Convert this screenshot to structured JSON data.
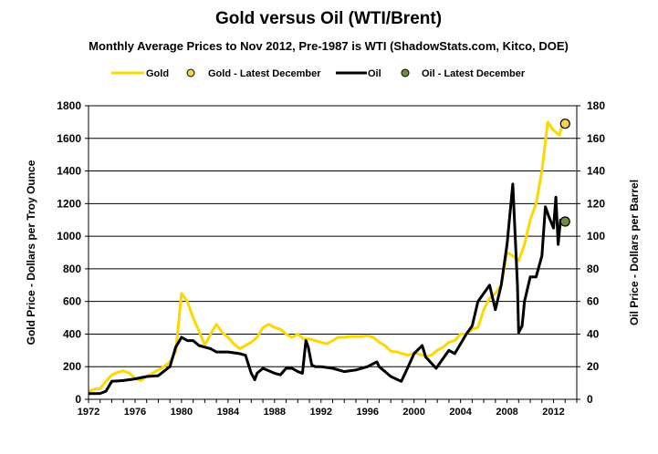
{
  "chart_data": {
    "type": "line",
    "title": "Gold versus Oil (WTI/Brent)",
    "subtitle": "Monthly Average Prices to Nov 2012, Pre-1987 is WTI (ShadowStats.com, Kitco, DOE)",
    "ylabel_left": "Gold Price - Dollars per Troy Ounce",
    "ylabel_right": "Oil Price - Dollars per Barrel",
    "xlim": [
      1972,
      2014
    ],
    "ylim_left": [
      0,
      1800
    ],
    "ylim_right": [
      0,
      180
    ],
    "x_ticks": [
      "1972",
      "1976",
      "1980",
      "1984",
      "1988",
      "1992",
      "1996",
      "2000",
      "2004",
      "2008",
      "2012"
    ],
    "y_ticks_left": [
      "0",
      "200",
      "400",
      "600",
      "800",
      "1000",
      "1200",
      "1400",
      "1600",
      "1800"
    ],
    "y_ticks_right": [
      "0",
      "20",
      "40",
      "60",
      "80",
      "100",
      "120",
      "140",
      "160",
      "180"
    ],
    "grid": true,
    "legend_position": "top",
    "colors": {
      "gold": "#FFD700",
      "oil": "#000000",
      "gold_marker": "#F2D24A",
      "oil_marker": "#6B8E3A"
    },
    "legend": [
      "Gold",
      "Gold - Latest December",
      "Oil",
      "Oil - Latest December"
    ],
    "series": [
      {
        "name": "Gold",
        "axis": "left",
        "x": [
          1972.0,
          1972.5,
          1973.0,
          1973.5,
          1974.0,
          1974.5,
          1975.0,
          1975.5,
          1976.0,
          1976.5,
          1977.0,
          1977.5,
          1978.0,
          1978.5,
          1979.0,
          1979.5,
          1980.0,
          1980.5,
          1981.0,
          1981.5,
          1982.0,
          1982.5,
          1983.0,
          1983.5,
          1984.0,
          1984.5,
          1985.0,
          1985.5,
          1986.0,
          1986.5,
          1987.0,
          1987.5,
          1988.0,
          1988.5,
          1989.0,
          1989.5,
          1990.0,
          1990.5,
          1991.0,
          1991.5,
          1992.0,
          1992.5,
          1993.0,
          1993.5,
          1994.0,
          1994.5,
          1995.0,
          1995.5,
          1996.0,
          1996.5,
          1997.0,
          1997.5,
          1998.0,
          1998.5,
          1999.0,
          1999.5,
          2000.0,
          2000.5,
          2001.0,
          2001.5,
          2002.0,
          2002.5,
          2003.0,
          2003.5,
          2004.0,
          2004.5,
          2005.0,
          2005.5,
          2006.0,
          2006.5,
          2007.0,
          2007.5,
          2008.0,
          2008.5,
          2009.0,
          2009.5,
          2010.0,
          2010.5,
          2011.0,
          2011.5,
          2012.0,
          2012.5,
          2012.9
        ],
        "values": [
          48,
          62,
          65,
          110,
          150,
          165,
          175,
          160,
          130,
          115,
          140,
          160,
          180,
          200,
          230,
          290,
          650,
          600,
          500,
          420,
          330,
          400,
          460,
          410,
          380,
          340,
          310,
          330,
          350,
          380,
          440,
          460,
          440,
          430,
          400,
          380,
          400,
          370,
          370,
          360,
          350,
          340,
          360,
          380,
          380,
          385,
          385,
          385,
          390,
          380,
          350,
          330,
          295,
          290,
          280,
          270,
          285,
          275,
          265,
          270,
          300,
          320,
          350,
          360,
          400,
          400,
          430,
          440,
          550,
          620,
          650,
          700,
          900,
          880,
          850,
          950,
          1100,
          1200,
          1400,
          1700,
          1650,
          1620,
          1720
        ]
      },
      {
        "name": "Oil",
        "axis": "right",
        "x": [
          1972.0,
          1973.0,
          1973.5,
          1974.0,
          1975.0,
          1976.0,
          1977.0,
          1978.0,
          1979.0,
          1979.5,
          1980.0,
          1980.5,
          1981.0,
          1981.5,
          1982.0,
          1982.5,
          1983.0,
          1984.0,
          1985.0,
          1985.5,
          1986.0,
          1986.3,
          1986.5,
          1987.0,
          1988.0,
          1988.5,
          1989.0,
          1989.5,
          1990.0,
          1990.4,
          1990.7,
          1990.9,
          1991.2,
          1991.5,
          1992.0,
          1993.0,
          1994.0,
          1995.0,
          1996.0,
          1996.8,
          1997.0,
          1998.0,
          1998.9,
          1999.5,
          2000.0,
          2000.7,
          2001.0,
          2001.9,
          2002.5,
          2003.0,
          2003.5,
          2004.0,
          2004.5,
          2005.0,
          2005.5,
          2006.0,
          2006.5,
          2007.0,
          2007.5,
          2008.0,
          2008.5,
          2008.9,
          2009.0,
          2009.3,
          2009.5,
          2010.0,
          2010.5,
          2011.0,
          2011.3,
          2011.6,
          2012.0,
          2012.2,
          2012.4,
          2012.6,
          2012.9
        ],
        "values": [
          3.5,
          3.6,
          5,
          11,
          11.5,
          12.5,
          14,
          14.5,
          20,
          32,
          38,
          36,
          36,
          33,
          32,
          31,
          29,
          29,
          28,
          27,
          16,
          12,
          16,
          19,
          16,
          15,
          19,
          19,
          17,
          16,
          36,
          32,
          21,
          20,
          20,
          19,
          17,
          18,
          20,
          23,
          20,
          14,
          11,
          20,
          28,
          33,
          26,
          19,
          25,
          30,
          28,
          34,
          40,
          45,
          60,
          65,
          70,
          55,
          70,
          95,
          132,
          70,
          41,
          45,
          60,
          75,
          75,
          88,
          118,
          112,
          105,
          124,
          95,
          110,
          109
        ]
      }
    ],
    "markers": [
      {
        "name": "Gold - Latest December",
        "axis": "left",
        "x": 2013.0,
        "y": 1690
      },
      {
        "name": "Oil - Latest December",
        "axis": "right",
        "x": 2013.0,
        "y": 109
      }
    ]
  }
}
